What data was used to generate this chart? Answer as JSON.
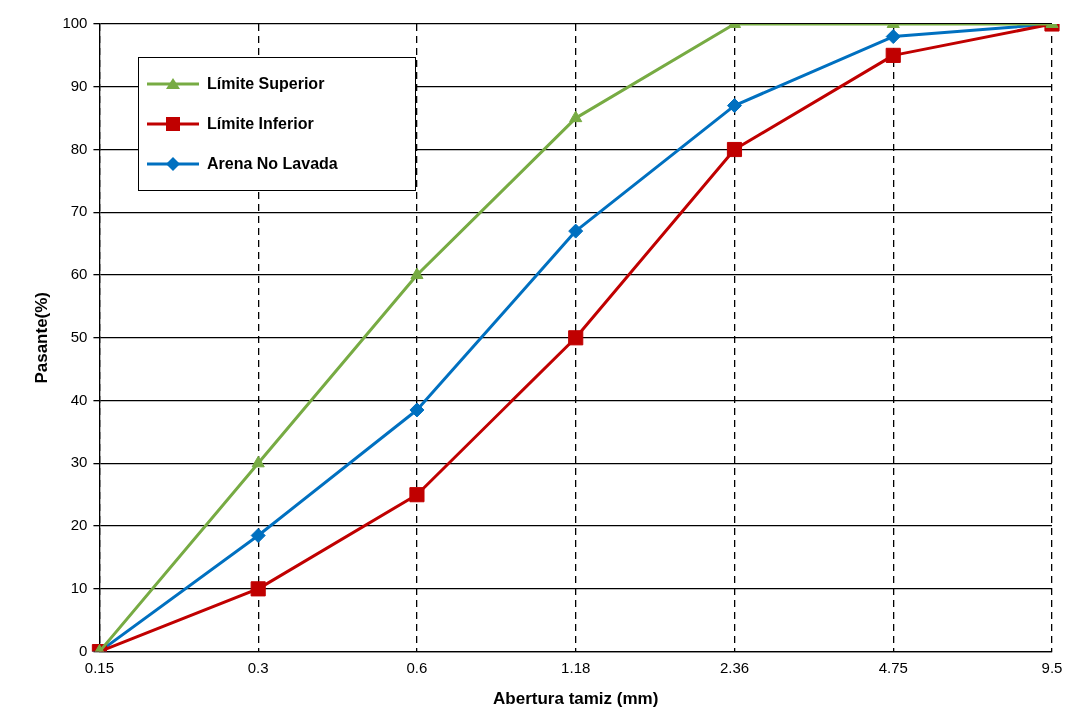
{
  "chart_data": {
    "type": "line",
    "xlabel": "Abertura tamiz (mm)",
    "ylabel": "Pasante(%)",
    "categories": [
      "0.15",
      "0.3",
      "0.6",
      "1.18",
      "2.36",
      "4.75",
      "9.5"
    ],
    "series": [
      {
        "name": "Límite Superior",
        "color": "#77ab43",
        "marker": "triangle",
        "values": [
          0,
          30,
          60,
          85,
          100,
          100,
          100
        ]
      },
      {
        "name": "Límite Inferior",
        "color": "#c00000",
        "marker": "square",
        "values": [
          0,
          10,
          25,
          50,
          80,
          95,
          100
        ]
      },
      {
        "name": "Arena No Lavada",
        "color": "#0070c0",
        "marker": "diamond",
        "values": [
          0,
          18.5,
          38.5,
          67,
          87,
          98,
          100
        ]
      }
    ],
    "ylim": [
      0,
      100
    ],
    "yticks": [
      0,
      10,
      20,
      30,
      40,
      50,
      60,
      70,
      80,
      90,
      100
    ],
    "grid": true,
    "legend": "top left",
    "line_style": "solid"
  }
}
